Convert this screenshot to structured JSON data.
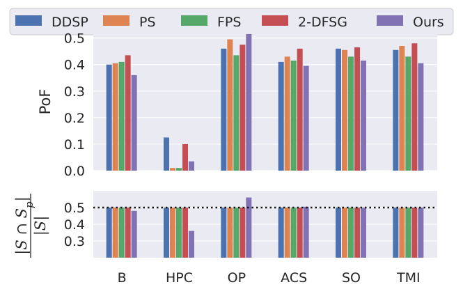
{
  "chart_data": [
    {
      "type": "bar",
      "panel": "top",
      "ylabel": "PoF",
      "ylim": [
        0,
        0.52
      ],
      "yticks": [
        "0.0",
        "0.1",
        "0.2",
        "0.3",
        "0.4",
        "0.5"
      ],
      "ytick_values": [
        0.0,
        0.1,
        0.2,
        0.3,
        0.4,
        0.5
      ],
      "categories": [
        "B",
        "HPC",
        "OP",
        "ACS",
        "SO",
        "TMI"
      ],
      "grid": true,
      "series": [
        {
          "name": "DDSP",
          "color": "#4c72b0",
          "values": [
            0.4,
            0.125,
            0.46,
            0.41,
            0.46,
            0.455
          ]
        },
        {
          "name": "PS",
          "color": "#dd8452",
          "values": [
            0.405,
            0.01,
            0.495,
            0.43,
            0.455,
            0.47
          ]
        },
        {
          "name": "FPS",
          "color": "#55a868",
          "values": [
            0.41,
            0.01,
            0.435,
            0.415,
            0.43,
            0.43
          ]
        },
        {
          "name": "2-DFSG",
          "color": "#c44e52",
          "values": [
            0.435,
            0.1,
            0.475,
            0.46,
            0.465,
            0.48
          ]
        },
        {
          "name": "Ours",
          "color": "#8172b3",
          "values": [
            0.36,
            0.035,
            0.515,
            0.395,
            0.415,
            0.405
          ]
        }
      ]
    },
    {
      "type": "bar",
      "panel": "bottom",
      "ylabel_parts": {
        "num": "|S ∩ S",
        "sub": "p",
        "close": "|",
        "den": "|S|"
      },
      "ylim": [
        0.2,
        0.6
      ],
      "yticks": [
        "0.3",
        "0.4",
        "0.5"
      ],
      "ytick_values": [
        0.3,
        0.4,
        0.5
      ],
      "categories": [
        "B",
        "HPC",
        "OP",
        "ACS",
        "SO",
        "TMI"
      ],
      "reference_line": 0.5,
      "reference_style": "dotted",
      "grid": true,
      "series": [
        {
          "name": "DDSP",
          "color": "#4c72b0",
          "values": [
            0.5,
            0.5,
            0.5,
            0.5,
            0.5,
            0.5
          ]
        },
        {
          "name": "PS",
          "color": "#dd8452",
          "values": [
            0.5,
            0.5,
            0.5,
            0.5,
            0.5,
            0.5
          ]
        },
        {
          "name": "FPS",
          "color": "#55a868",
          "values": [
            0.5,
            0.5,
            0.5,
            0.5,
            0.5,
            0.5
          ]
        },
        {
          "name": "2-DFSG",
          "color": "#c44e52",
          "values": [
            0.5,
            0.5,
            0.5,
            0.5,
            0.5,
            0.5
          ]
        },
        {
          "name": "Ours",
          "color": "#8172b3",
          "values": [
            0.48,
            0.36,
            0.56,
            0.505,
            0.5,
            0.5
          ]
        }
      ]
    }
  ],
  "legend": {
    "placement": "top",
    "entries": [
      "DDSP",
      "PS",
      "FPS",
      "2-DFSG",
      "Ours"
    ]
  }
}
